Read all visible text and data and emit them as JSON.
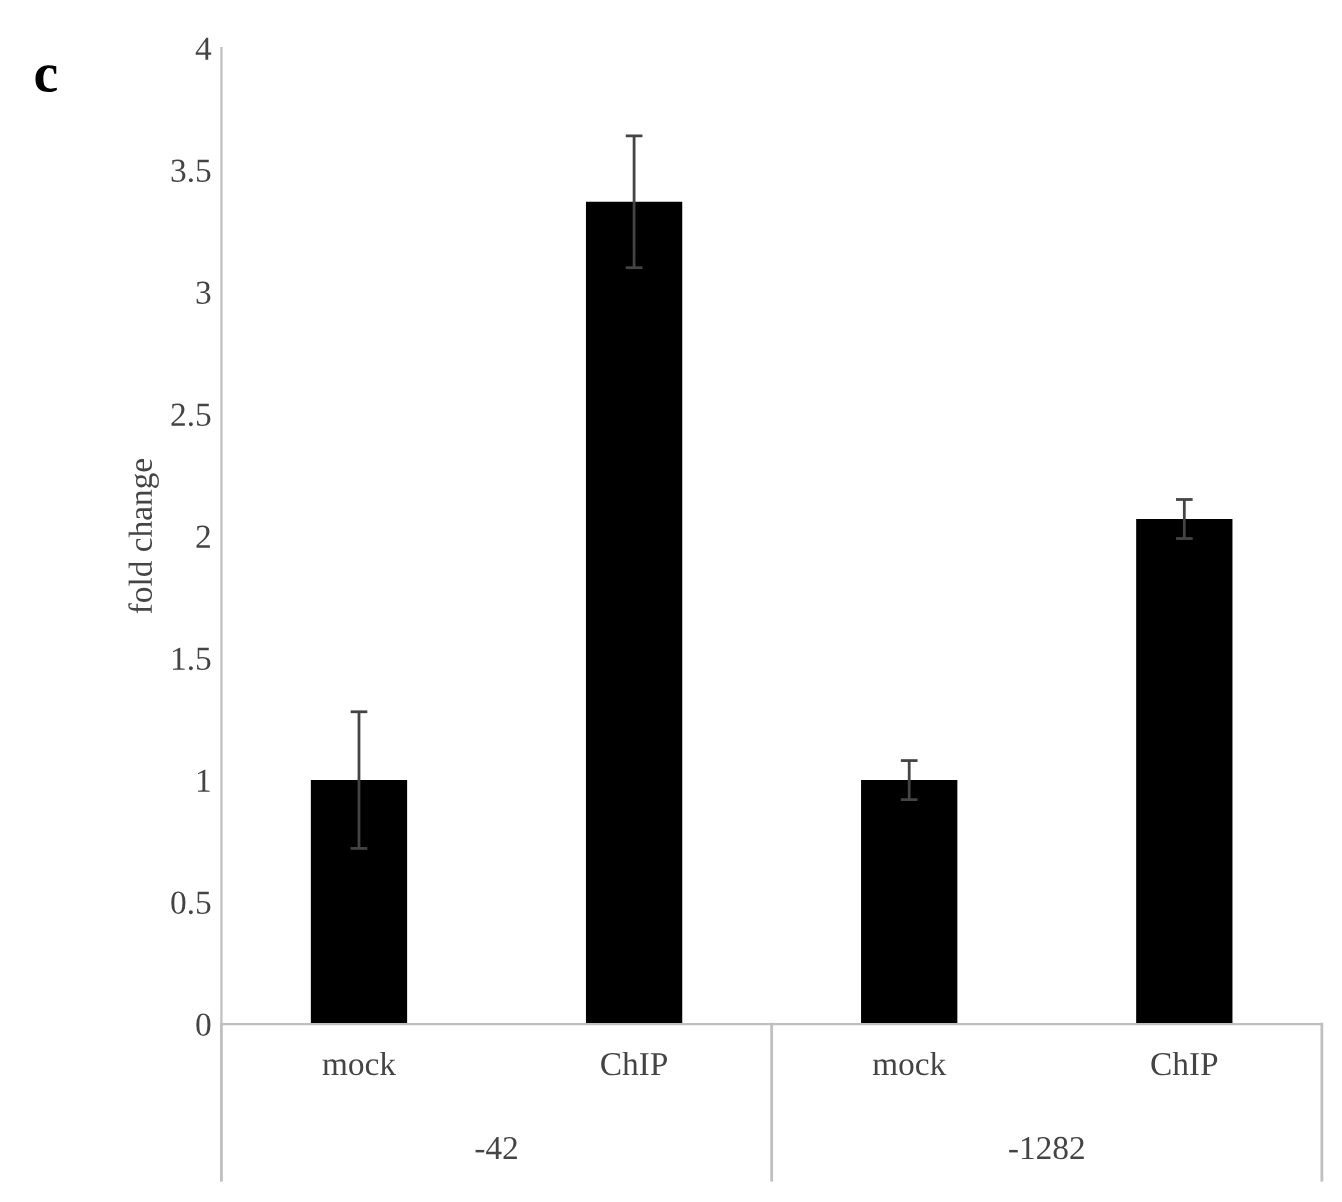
{
  "chart_data": {
    "type": "bar",
    "ylabel": "fold change",
    "categories": [
      "mock",
      "ChIP",
      "mock",
      "ChIP"
    ],
    "values": [
      1.0,
      3.37,
      1.0,
      2.07
    ],
    "errors": [
      0.28,
      0.27,
      0.08,
      0.08
    ],
    "color": "#000000",
    "ylim": [
      0,
      4
    ],
    "yticks": [
      0,
      0.5,
      1,
      1.5,
      2,
      2.5,
      3,
      3.5,
      4
    ],
    "grid": false,
    "annotations": [
      "c",
      "-42",
      "-1282"
    ]
  }
}
